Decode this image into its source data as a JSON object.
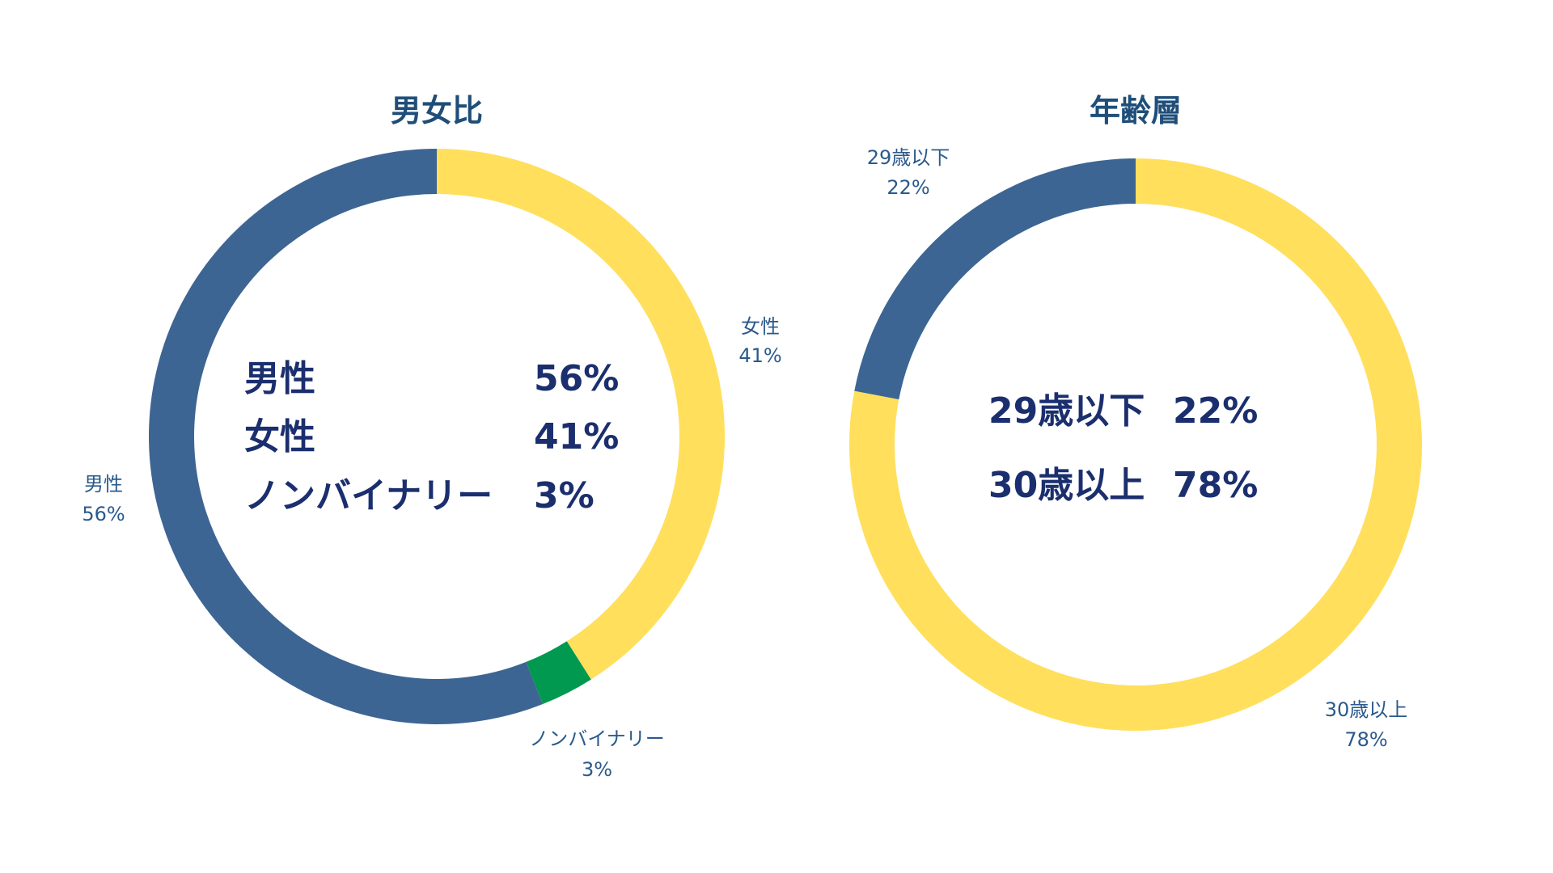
{
  "chart_data": [
    {
      "type": "pie",
      "title": "男女比",
      "categories": [
        "女性",
        "ノンバイナリー",
        "男性"
      ],
      "values": [
        41,
        3,
        56
      ],
      "colors": [
        "#FFDF5C",
        "#00994F",
        "#3D6593"
      ],
      "slice_labels": [
        {
          "name": "女性",
          "value": "41%"
        },
        {
          "name": "ノンバイナリー",
          "value": "3%"
        },
        {
          "name": "男性",
          "value": "56%"
        }
      ],
      "center_rows": [
        {
          "name": "男性",
          "value": "56%"
        },
        {
          "name": "女性",
          "value": "41%"
        },
        {
          "name": "ノンバイナリー",
          "value": "3%"
        }
      ]
    },
    {
      "type": "pie",
      "title": "年齢層",
      "categories": [
        "30歳以上",
        "29歳以下"
      ],
      "values": [
        78,
        22
      ],
      "colors": [
        "#FFDF5C",
        "#3D6593"
      ],
      "slice_labels": [
        {
          "name": "30歳以上",
          "value": "78%"
        },
        {
          "name": "29歳以下",
          "value": "22%"
        }
      ],
      "center_rows": [
        {
          "name": "29歳以下",
          "value": "22%"
        },
        {
          "name": "30歳以上",
          "value": "78%"
        }
      ]
    }
  ]
}
